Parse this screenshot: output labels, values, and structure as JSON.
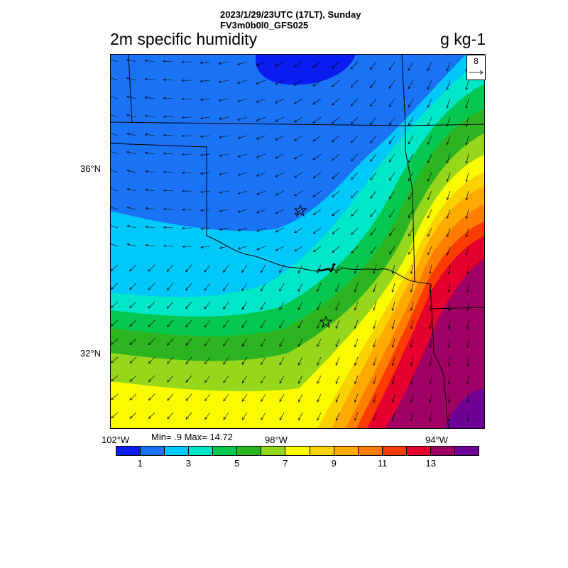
{
  "header": {
    "line1": "2023/1/29/23UTC (17LT), Sunday",
    "line2": "FV3m0b0l0_GFS025",
    "field_title": "2m specific humidity",
    "units": "g kg-1"
  },
  "map": {
    "lat_labels": [
      "36°N",
      "32°N"
    ],
    "lon_labels": [
      "102°W",
      "98°W",
      "94°W"
    ],
    "min_max": "Min= .9 Max= 14.72",
    "reference_vector": "8",
    "station_markers": [
      "star-marker",
      "star-marker"
    ]
  },
  "colorbar": {
    "colors": [
      "#0a1cf0",
      "#1a73f5",
      "#00c8fa",
      "#00e6c8",
      "#06c850",
      "#2db421",
      "#96d71b",
      "#fafa00",
      "#fad200",
      "#ffaa00",
      "#ff7d00",
      "#fa3c00",
      "#e6002d",
      "#a00064",
      "#6e0096"
    ],
    "labels": [
      "1",
      "3",
      "5",
      "7",
      "9",
      "11",
      "13"
    ]
  }
}
